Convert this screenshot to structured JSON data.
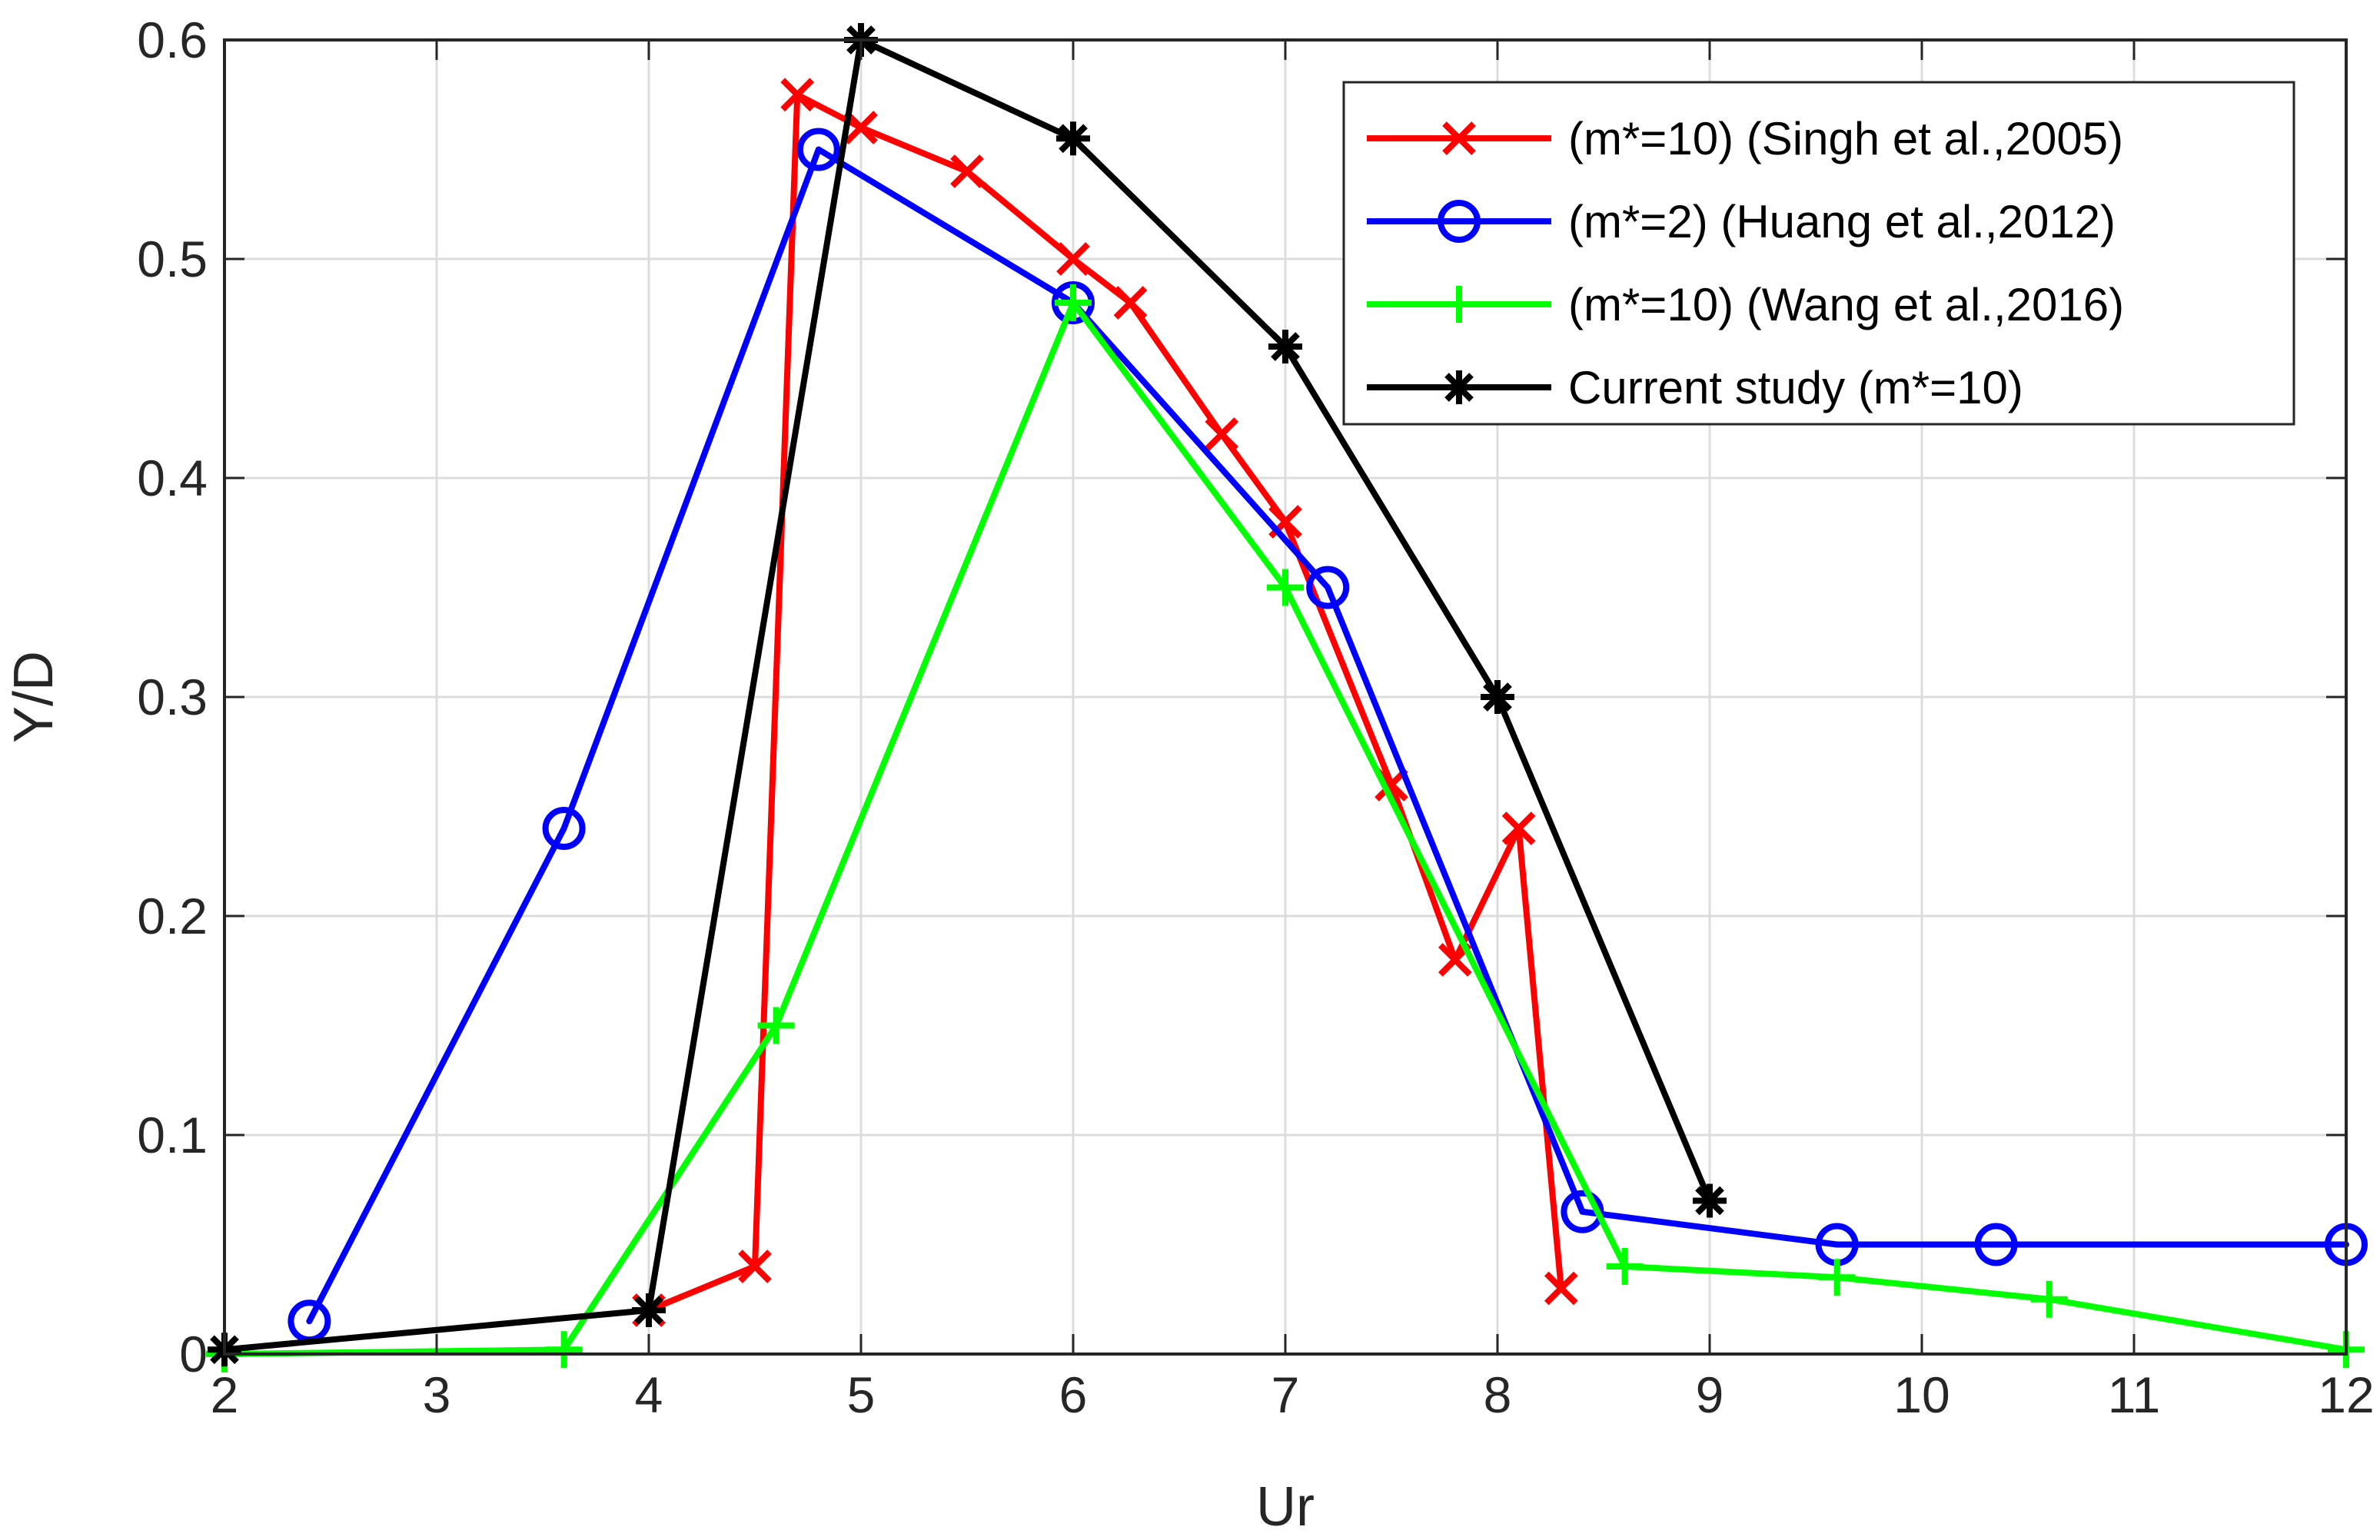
{
  "chart_data": {
    "type": "line",
    "title": "",
    "xlabel": "Ur",
    "ylabel": "Y/D",
    "xlim": [
      2,
      12
    ],
    "ylim": [
      0,
      0.6
    ],
    "xticks": [
      2,
      3,
      4,
      5,
      6,
      7,
      8,
      9,
      10,
      11,
      12
    ],
    "yticks": [
      0,
      0.1,
      0.2,
      0.3,
      0.4,
      0.5,
      0.6
    ],
    "xtick_labels": [
      "2",
      "3",
      "4",
      "5",
      "6",
      "7",
      "8",
      "9",
      "10",
      "11",
      "12"
    ],
    "ytick_labels": [
      "0",
      "0.1",
      "0.2",
      "0.3",
      "0.4",
      "0.5",
      "0.6"
    ],
    "grid": true,
    "legend_position": "top-right",
    "series": [
      {
        "name": "(m*=10) (Singh et al.,2005)",
        "color": "#ff0000",
        "marker": "x",
        "x": [
          4.0,
          4.5,
          4.7,
          5.0,
          5.5,
          6.0,
          6.27,
          6.7,
          7.0,
          7.5,
          7.8,
          8.1,
          8.3
        ],
        "y": [
          0.02,
          0.04,
          0.575,
          0.56,
          0.54,
          0.5,
          0.48,
          0.42,
          0.38,
          0.26,
          0.18,
          0.24,
          0.03
        ]
      },
      {
        "name": "(m*=2) (Huang et al.,2012)",
        "color": "#0000ff",
        "marker": "o",
        "x": [
          2.4,
          3.6,
          4.8,
          6.0,
          7.2,
          8.4,
          9.6,
          10.35,
          12.0
        ],
        "y": [
          0.015,
          0.24,
          0.55,
          0.48,
          0.35,
          0.065,
          0.05,
          0.05,
          0.05
        ]
      },
      {
        "name": "(m*=10) (Wang et al.,2016)",
        "color": "#00ff00",
        "marker": "+",
        "x": [
          2.0,
          3.6,
          4.6,
          6.0,
          7.0,
          8.6,
          9.6,
          10.6,
          12.0
        ],
        "y": [
          0.0,
          0.002,
          0.15,
          0.48,
          0.35,
          0.04,
          0.035,
          0.025,
          0.002
        ]
      },
      {
        "name": "Current study (m*=10)",
        "color": "#000000",
        "marker": "*",
        "x": [
          2.0,
          4.0,
          5.0,
          6.0,
          7.0,
          8.0,
          9.0
        ],
        "y": [
          0.002,
          0.02,
          0.6,
          0.555,
          0.46,
          0.3,
          0.07
        ]
      }
    ]
  }
}
